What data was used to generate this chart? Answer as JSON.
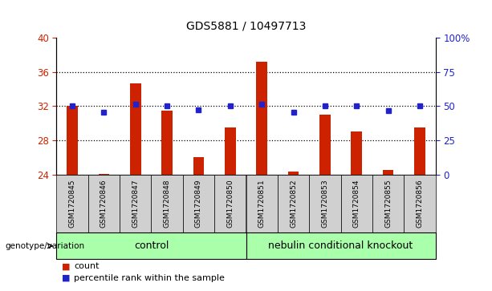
{
  "title": "GDS5881 / 10497713",
  "samples": [
    "GSM1720845",
    "GSM1720846",
    "GSM1720847",
    "GSM1720848",
    "GSM1720849",
    "GSM1720850",
    "GSM1720851",
    "GSM1720852",
    "GSM1720853",
    "GSM1720854",
    "GSM1720855",
    "GSM1720856"
  ],
  "counts": [
    32.0,
    24.1,
    34.7,
    31.5,
    26.0,
    29.5,
    37.2,
    24.4,
    31.0,
    29.0,
    24.5,
    29.5
  ],
  "percentiles": [
    32.0,
    31.3,
    32.2,
    32.0,
    31.6,
    32.0,
    32.2,
    31.3,
    32.0,
    32.0,
    31.5,
    32.0
  ],
  "ylim_left": [
    24,
    40
  ],
  "ylim_right": [
    0,
    100
  ],
  "yticks_left": [
    24,
    28,
    32,
    36,
    40
  ],
  "yticks_right": [
    0,
    25,
    50,
    75,
    100
  ],
  "ytick_labels_right": [
    "0",
    "25",
    "50",
    "75",
    "100%"
  ],
  "bar_color": "#cc2200",
  "dot_color": "#2222cc",
  "bar_bottom": 24,
  "n_control": 6,
  "n_knockout": 6,
  "control_label": "control",
  "knockout_label": "nebulin conditional knockout",
  "genotype_label": "genotype/variation",
  "legend_count": "count",
  "legend_percentile": "percentile rank within the sample",
  "control_bg": "#aaffaa",
  "knockout_bg": "#aaffaa",
  "sample_bg": "#d0d0d0",
  "grid_yticks": [
    28,
    32,
    36
  ],
  "bar_width": 0.35
}
